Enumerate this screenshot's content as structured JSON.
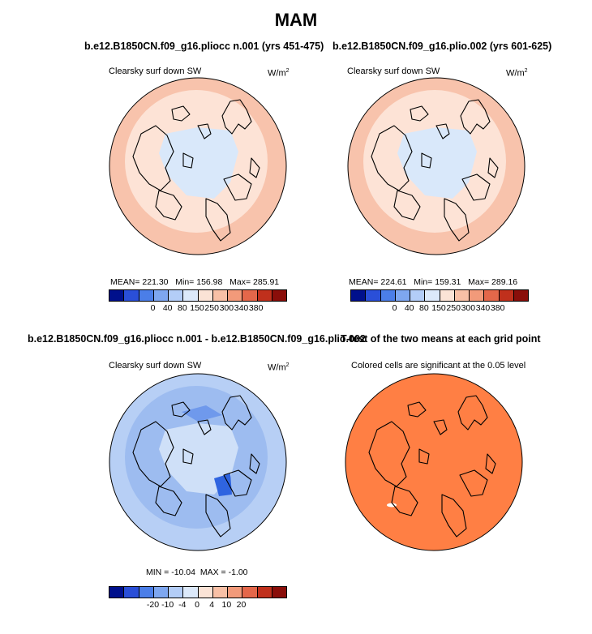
{
  "chart_data": [
    {
      "type": "heatmap",
      "panel_title": "b.e12.B1850CN.f09_g16.pliocc n.001 (yrs 451-475)",
      "variable": "Clearsky surf down SW",
      "units": "W/m",
      "units_sup": "2",
      "stats": {
        "mean": "221.30",
        "min": "156.98",
        "max": "285.91"
      },
      "colorbar_ticks": [
        "0",
        "40",
        "80",
        "150",
        "250",
        "300",
        "340",
        "380"
      ],
      "colorbar_colors": [
        "#00108c",
        "#2a4fd8",
        "#4b7ee8",
        "#7ea7f0",
        "#b3cdf7",
        "#dce9fa",
        "#fbe3d6",
        "#f8c0a6",
        "#f29a7a",
        "#e4674a",
        "#c0301c",
        "#8a0e0a"
      ],
      "rings": {
        "outer": "#f8c3ac",
        "middle": "#fde3d6",
        "inner": "#d9e8fa"
      }
    },
    {
      "type": "heatmap",
      "panel_title": "b.e12.B1850CN.f09_g16.plio.002 (yrs 601-625)",
      "variable": "Clearsky surf down SW",
      "units": "W/m",
      "units_sup": "2",
      "stats": {
        "mean": "224.61",
        "min": "159.31",
        "max": "289.16"
      },
      "colorbar_ticks": [
        "0",
        "40",
        "80",
        "150",
        "250",
        "300",
        "340",
        "380"
      ],
      "colorbar_colors": [
        "#00108c",
        "#2a4fd8",
        "#4b7ee8",
        "#7ea7f0",
        "#b3cdf7",
        "#dce9fa",
        "#fbe3d6",
        "#f8c0a6",
        "#f29a7a",
        "#e4674a",
        "#c0301c",
        "#8a0e0a"
      ],
      "rings": {
        "outer": "#f8c3ac",
        "middle": "#fde3d6",
        "inner": "#d9e8fa"
      }
    },
    {
      "type": "heatmap",
      "panel_title": "b.e12.B1850CN.f09_g16.pliocc n.001 - b.e12.B1850CN.f09_g16.plio.002",
      "variable": "Clearsky surf down SW",
      "units": "W/m",
      "units_sup": "2",
      "stats": {
        "min_label": "MIN =",
        "min": "-10.04",
        "max_label": "MAX =",
        "max": "-1.00"
      },
      "colorbar_ticks": [
        "-20",
        "-10",
        "-4",
        "0",
        "4",
        "10",
        "20"
      ],
      "colorbar_colors": [
        "#00108c",
        "#2a4fd8",
        "#4b7ee8",
        "#7ea7f0",
        "#b3cdf7",
        "#dce9fa",
        "#fbe3d6",
        "#f8c0a6",
        "#f29a7a",
        "#e4674a",
        "#c0301c",
        "#8a0e0a"
      ],
      "rings": {
        "outer": "#b7cff5",
        "middle": "#9dbcf0",
        "inner": "#cfe0f8"
      }
    },
    {
      "type": "heatmap",
      "panel_title": "T-test of the two means at each grid point",
      "subtitle": "Colored cells are significant at the 0.05 level",
      "fill": "#ff7f44"
    }
  ],
  "title": "MAM"
}
